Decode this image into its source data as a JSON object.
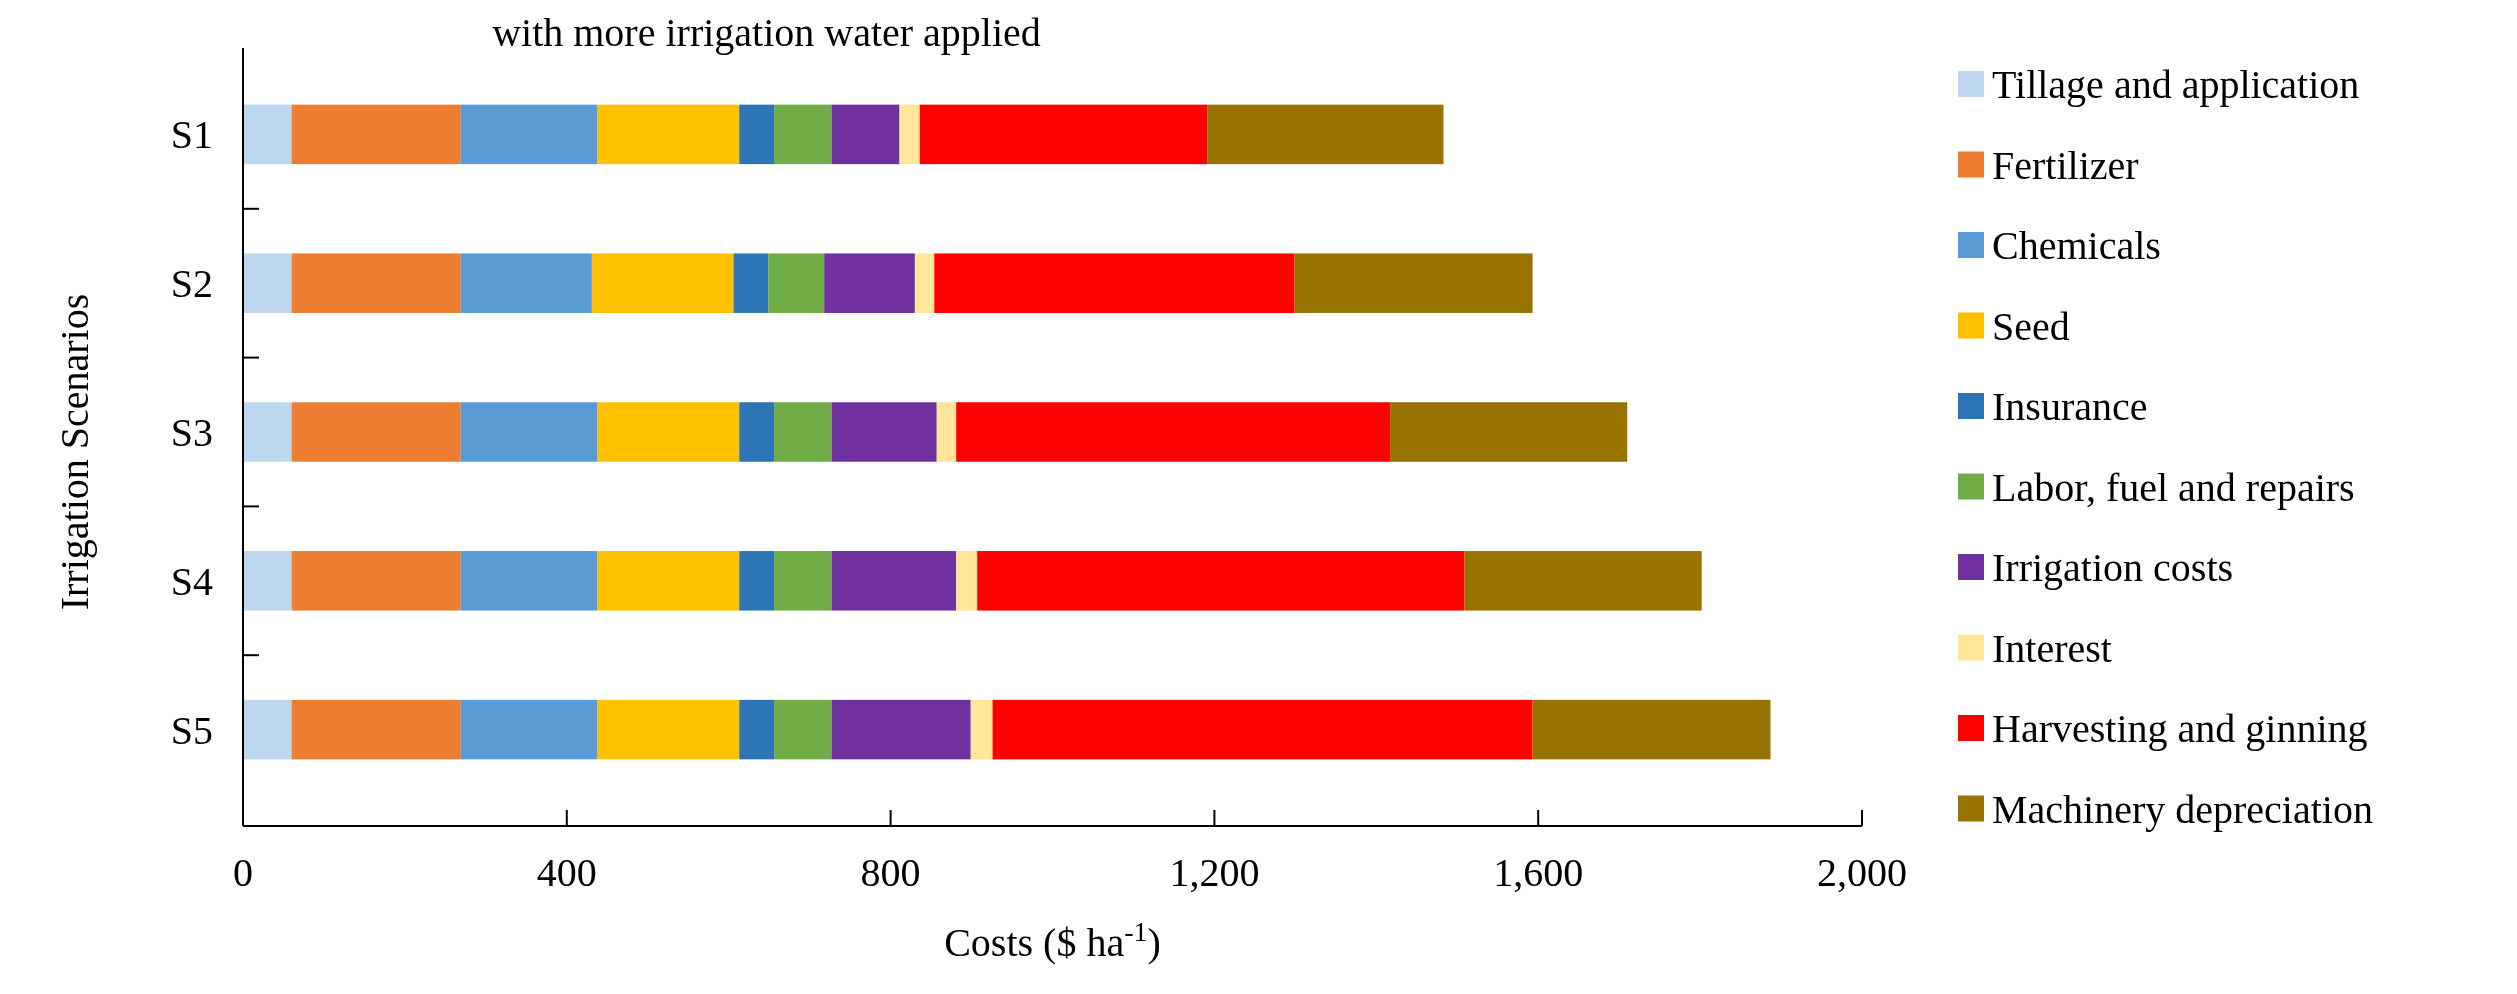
{
  "chart_data": {
    "type": "bar",
    "orientation": "horizontal",
    "stacked": true,
    "title": "with more irrigation water applied",
    "xlabel": "Costs ($ ha$^{-1}$)",
    "ylabel": "Irrigation Scenarios",
    "categories": [
      "S1",
      "S2",
      "S3",
      "S4",
      "S5"
    ],
    "xlim": [
      0,
      2000
    ],
    "xticks": [
      0,
      {
        "value": 400,
        "label": "400"
      },
      {
        "value": 800,
        "label": "800"
      },
      {
        "value": 1200,
        "label": "1,200"
      },
      {
        "value": 1600,
        "label": "1,600"
      },
      {
        "value": 2000,
        "label": "2,000"
      }
    ],
    "legend": "right",
    "grid": false,
    "series": [
      {
        "name": "Tillage and application",
        "color": "#bdd7ee",
        "values": [
          60,
          60,
          60,
          60,
          60
        ]
      },
      {
        "name": "Fertilizer",
        "color": "#ed7d31",
        "values": [
          209,
          209,
          209,
          209,
          209
        ]
      },
      {
        "name": "Chemicals",
        "color": "#5b9bd5",
        "values": [
          169,
          162,
          169,
          169,
          169
        ]
      },
      {
        "name": "Seed",
        "color": "#ffc000",
        "values": [
          175,
          175,
          175,
          175,
          175
        ]
      },
      {
        "name": "Insurance",
        "color": "#2e75b6",
        "values": [
          43,
          43,
          43,
          43,
          43
        ]
      },
      {
        "name": "Labor, fuel and repairs",
        "color": "#70ad47",
        "values": [
          71,
          69,
          71,
          71,
          71
        ]
      },
      {
        "name": "Irrigation costs",
        "color": "#7030a0",
        "values": [
          84,
          112,
          130,
          154,
          172
        ]
      },
      {
        "name": "Interest",
        "color": "#ffe699",
        "values": [
          25,
          24,
          24,
          26,
          27
        ]
      },
      {
        "name": "Harvesting and ginning",
        "color": "#ff0000",
        "values": [
          355,
          445,
          536,
          602,
          667
        ]
      },
      {
        "name": "Machinery depreciation",
        "color": "#997300",
        "values": [
          292,
          294,
          293,
          293,
          294
        ]
      }
    ]
  }
}
